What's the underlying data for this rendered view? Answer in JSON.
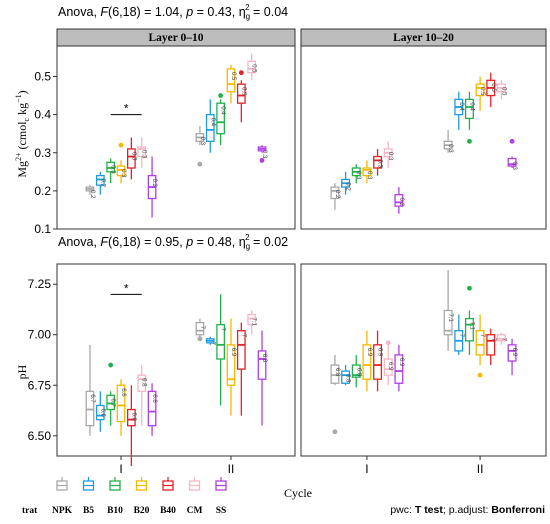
{
  "chart_data": [
    {
      "type": "boxplot",
      "variable": "Mg",
      "stat_prefix": "Anova, ",
      "stat_F": "F",
      "stat_df": "(6,18) = 1.04, ",
      "stat_p": "p",
      "stat_pval": " = 0.43, η",
      "stat_g": "g",
      "stat_sq": "2",
      "stat_eta": " = 0.04",
      "ylabel_main": "Mg",
      "ylabel_sup": "2+",
      "ylabel_rest": " (cmol",
      "ylabel_c": "c",
      "ylabel_unit": " kg",
      "ylabel_exp": "−1",
      "ylabel_close": ")",
      "ylim": [
        0.1,
        0.58
      ],
      "yticks": [
        "0.1",
        "0.2",
        "0.3",
        "0.4",
        "0.5"
      ],
      "sig_mark": "*",
      "facets": [
        {
          "name": "Layer 0–10",
          "groups": [
            {
              "cycle": "I",
              "trat": [
                "NPK",
                "B5",
                "B10",
                "B20",
                "B40",
                "CM",
                "SS"
              ],
              "stats": [
                [
                  0.19,
                  0.2,
                  0.205,
                  0.21,
                  0.215
                ],
                [
                  0.19,
                  0.215,
                  0.23,
                  0.24,
                  0.25
                ],
                [
                  0.22,
                  0.25,
                  0.26,
                  0.275,
                  0.285
                ],
                [
                  0.22,
                  0.24,
                  0.255,
                  0.265,
                  0.28
                ],
                [
                  0.23,
                  0.26,
                  0.29,
                  0.31,
                  0.34
                ],
                [
                  0.26,
                  0.29,
                  0.31,
                  0.315,
                  0.34
                ],
                [
                  0.13,
                  0.18,
                  0.21,
                  0.24,
                  0.29
                ]
              ],
              "means": [
                "0.2",
                "0.2",
                "0.3",
                "0.3",
                "0.3",
                "0.3",
                "0.2"
              ],
              "outliers": [
                [],
                [],
                [],
                [
                  0.32
                ],
                [],
                [],
                []
              ]
            },
            {
              "cycle": "II",
              "trat": [
                "NPK",
                "B5",
                "B10",
                "B20",
                "B40",
                "CM",
                "SS"
              ],
              "stats": [
                [
                  0.32,
                  0.33,
                  0.34,
                  0.35,
                  0.37
                ],
                [
                  0.3,
                  0.33,
                  0.36,
                  0.4,
                  0.44
                ],
                [
                  0.32,
                  0.35,
                  0.38,
                  0.43,
                  0.44
                ],
                [
                  0.43,
                  0.46,
                  0.48,
                  0.52,
                  0.53
                ],
                [
                  0.38,
                  0.43,
                  0.45,
                  0.48,
                  0.49
                ],
                [
                  0.49,
                  0.51,
                  0.52,
                  0.54,
                  0.56
                ],
                [
                  0.3,
                  0.305,
                  0.31,
                  0.315,
                  0.32
                ]
              ],
              "means": [
                "0.3",
                "0.4",
                "0.4",
                "0.5",
                "0.5",
                "0.5",
                "0.3"
              ],
              "outliers": [
                [
                  0.27
                ],
                [],
                [
                  0.45
                ],
                [],
                [
                  0.51
                ],
                [],
                [
                  0.28
                ]
              ]
            }
          ]
        },
        {
          "name": "Layer 10–20",
          "groups": [
            {
              "cycle": "I",
              "trat": [
                "NPK",
                "B5",
                "B10",
                "B20",
                "B40",
                "CM",
                "SS"
              ],
              "stats": [
                [
                  0.15,
                  0.18,
                  0.2,
                  0.21,
                  0.22
                ],
                [
                  0.19,
                  0.21,
                  0.22,
                  0.23,
                  0.25
                ],
                [
                  0.22,
                  0.24,
                  0.25,
                  0.26,
                  0.27
                ],
                [
                  0.22,
                  0.24,
                  0.255,
                  0.26,
                  0.28
                ],
                [
                  0.24,
                  0.26,
                  0.28,
                  0.29,
                  0.31
                ],
                [
                  0.26,
                  0.29,
                  0.3,
                  0.31,
                  0.33
                ],
                [
                  0.14,
                  0.16,
                  0.17,
                  0.19,
                  0.21
                ]
              ],
              "means": [
                "0.2",
                "0.2",
                "0.3",
                "0.3",
                "0.3",
                "0.3",
                "0.2"
              ],
              "outliers": [
                [],
                [],
                [],
                [],
                [],
                [],
                []
              ]
            },
            {
              "cycle": "II",
              "trat": [
                "NPK",
                "B5",
                "B10",
                "B20",
                "B40",
                "CM",
                "SS"
              ],
              "stats": [
                [
                  0.3,
                  0.31,
                  0.32,
                  0.33,
                  0.36
                ],
                [
                  0.36,
                  0.4,
                  0.42,
                  0.44,
                  0.46
                ],
                [
                  0.36,
                  0.39,
                  0.42,
                  0.44,
                  0.46
                ],
                [
                  0.41,
                  0.45,
                  0.47,
                  0.48,
                  0.5
                ],
                [
                  0.42,
                  0.45,
                  0.47,
                  0.49,
                  0.51
                ],
                [
                  0.44,
                  0.46,
                  0.47,
                  0.48,
                  0.49
                ],
                [
                  0.26,
                  0.265,
                  0.27,
                  0.285,
                  0.29
                ]
              ],
              "means": [
                "0.3",
                "0.4",
                "0.4",
                "0.5",
                "0.5",
                "0.5",
                "0.3"
              ],
              "outliers": [
                [],
                [],
                [
                  0.33
                ],
                [],
                [],
                [],
                [
                  0.33
                ]
              ]
            }
          ]
        }
      ]
    },
    {
      "type": "boxplot",
      "variable": "pH",
      "stat_prefix": "Anova, ",
      "stat_F": "F",
      "stat_df": "(6,18) = 0.95, ",
      "stat_p": "p",
      "stat_pval": " = 0.48, η",
      "stat_g": "g",
      "stat_sq": "2",
      "stat_eta": " = 0.02",
      "ylabel": "pH",
      "ylim": [
        6.4,
        7.35
      ],
      "yticks": [
        "6.50",
        "6.75",
        "7.00",
        "7.25"
      ],
      "sig_mark": "*",
      "facets": [
        {
          "name": "Layer 0–10",
          "groups": [
            {
              "cycle": "I",
              "trat": [
                "NPK",
                "B5",
                "B10",
                "B20",
                "B40",
                "CM",
                "SS"
              ],
              "stats": [
                [
                  6.5,
                  6.55,
                  6.63,
                  6.72,
                  6.95
                ],
                [
                  6.52,
                  6.58,
                  6.6,
                  6.65,
                  6.72
                ],
                [
                  6.55,
                  6.63,
                  6.66,
                  6.7,
                  6.72
                ],
                [
                  6.5,
                  6.57,
                  6.65,
                  6.75,
                  6.78
                ],
                [
                  6.35,
                  6.55,
                  6.58,
                  6.63,
                  6.75
                ],
                [
                  6.55,
                  6.72,
                  6.78,
                  6.8,
                  6.85
                ],
                [
                  6.5,
                  6.55,
                  6.62,
                  6.72,
                  6.76
                ]
              ],
              "means": [
                "6.7",
                "6.6",
                "6.7",
                "6.6",
                "6.6",
                "6.8",
                "6.6"
              ],
              "outliers": [
                [],
                [],
                [
                  6.85
                ],
                [],
                [],
                [],
                []
              ]
            },
            {
              "cycle": "II",
              "trat": [
                "NPK",
                "B5",
                "B10",
                "B20",
                "B40",
                "CM",
                "SS"
              ],
              "stats": [
                [
                  6.98,
                  7,
                  7.02,
                  7.06,
                  7.08
                ],
                [
                  6.95,
                  6.96,
                  6.97,
                  6.98,
                  6.99
                ],
                [
                  6.65,
                  6.88,
                  6.95,
                  7.05,
                  7.2
                ],
                [
                  6.6,
                  6.75,
                  6.78,
                  6.95,
                  7.08
                ],
                [
                  6.6,
                  6.83,
                  6.95,
                  7.02,
                  7.06
                ],
                [
                  7,
                  7.05,
                  7.08,
                  7.1,
                  7.12
                ],
                [
                  6.55,
                  6.78,
                  6.88,
                  6.92,
                  7.02
                ]
              ],
              "means": [
                "7",
                "7",
                "7",
                "6.9",
                "7",
                "7.1",
                "6.8"
              ],
              "outliers": [
                [
                  6.98
                ],
                [],
                [],
                [],
                [],
                [],
                []
              ]
            }
          ]
        },
        {
          "name": "Layer 10–20",
          "groups": [
            {
              "cycle": "I",
              "trat": [
                "NPK",
                "B5",
                "B10",
                "B20",
                "B40",
                "CM",
                "SS"
              ],
              "stats": [
                [
                  6.75,
                  6.76,
                  6.8,
                  6.85,
                  6.9
                ],
                [
                  6.75,
                  6.76,
                  6.8,
                  6.82,
                  6.85
                ],
                [
                  6.74,
                  6.79,
                  6.8,
                  6.85,
                  6.9
                ],
                [
                  6.72,
                  6.78,
                  6.85,
                  6.95,
                  7.02
                ],
                [
                  6.72,
                  6.78,
                  6.85,
                  6.95,
                  7.02
                ],
                [
                  6.75,
                  6.8,
                  6.83,
                  6.88,
                  6.95
                ],
                [
                  6.72,
                  6.76,
                  6.82,
                  6.9,
                  6.95
                ]
              ],
              "means": [
                "6.8",
                "6.8",
                "6.8",
                "6.9",
                "6.9",
                "6.9",
                "6.9"
              ],
              "outliers": [
                [
                  6.52
                ],
                [],
                [],
                [],
                [],
                [
                  6.96
                ],
                []
              ]
            },
            {
              "cycle": "II",
              "trat": [
                "NPK",
                "B5",
                "B10",
                "B20",
                "B40",
                "CM",
                "SS"
              ],
              "stats": [
                [
                  6.92,
                  7,
                  7.02,
                  7.12,
                  7.32
                ],
                [
                  6.9,
                  6.92,
                  6.97,
                  7.02,
                  7.1
                ],
                [
                  6.9,
                  6.97,
                  7.05,
                  7.08,
                  7.12
                ],
                [
                  6.85,
                  6.9,
                  6.95,
                  7.02,
                  7.1
                ],
                [
                  6.85,
                  6.9,
                  6.97,
                  7,
                  7.03
                ],
                [
                  6.95,
                  6.97,
                  6.98,
                  7,
                  7.01
                ],
                [
                  6.8,
                  6.87,
                  6.92,
                  6.95,
                  6.98
                ]
              ],
              "means": [
                "7.1",
                "7",
                "7.1",
                "7",
                "7",
                "7",
                "6.9"
              ],
              "outliers": [
                [],
                [],
                [
                  7.23
                ],
                [
                  6.8
                ],
                [],
                [],
                []
              ]
            }
          ]
        }
      ]
    }
  ],
  "xlabel": "Cycle",
  "legend": {
    "title": "trat",
    "items": [
      {
        "label": "NPK",
        "color": "#a8a8a8"
      },
      {
        "label": "B5",
        "color": "#1e9be0"
      },
      {
        "label": "B10",
        "color": "#22b24c"
      },
      {
        "label": "B20",
        "color": "#f5b800"
      },
      {
        "label": "B40",
        "color": "#e32128"
      },
      {
        "label": "CM",
        "color": "#f7b6c4"
      },
      {
        "label": "SS",
        "color": "#b23fe6"
      }
    ]
  },
  "footer": {
    "prefix": "pwc: ",
    "test": "T test",
    "middle": "; p.adjust: ",
    "adjust": "Bonferroni"
  }
}
